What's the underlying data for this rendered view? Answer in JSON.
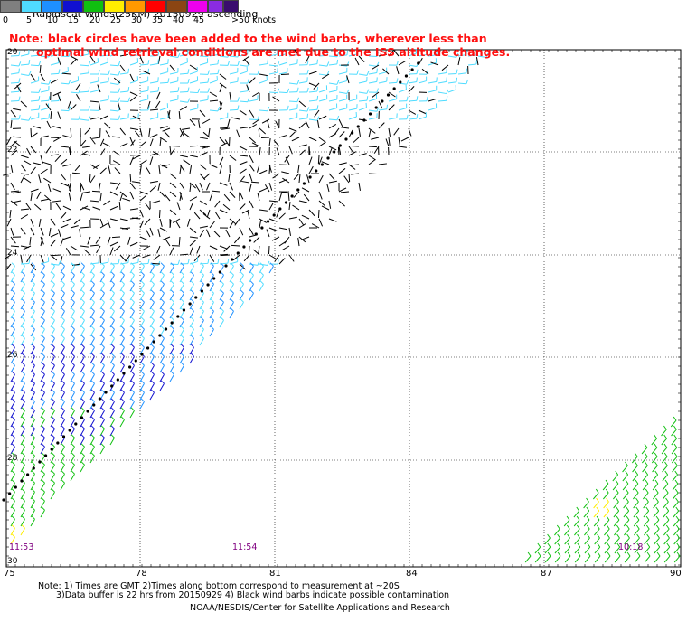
{
  "title": "Rapidscat Winds(25KM) 20150929 ascending",
  "note": {
    "line1": "Note: black circles have been added to the wind barbs, wherever less than",
    "line2": "optimal wind retrieval conditions are met due to the ISS altitude changes."
  },
  "legend": {
    "labels": [
      "0",
      "5",
      "10",
      "15",
      "20",
      "25",
      "30",
      "35",
      "40",
      "45",
      ">50 knots"
    ],
    "colors": [
      "#7f7f7f",
      "#4fdcff",
      "#1e90ff",
      "#1010d0",
      "#10c010",
      "#ffee00",
      "#ff9900",
      "#ff0000",
      "#8b4513",
      "#ee00ee",
      "#8a2be2",
      "#3a0d6e"
    ]
  },
  "map": {
    "lat_labels": [
      "20",
      "22",
      "24",
      "26",
      "28",
      "30"
    ],
    "lon_labels": [
      "75",
      "78",
      "81",
      "84",
      "87",
      "90"
    ],
    "times": [
      "11:53",
      "11:54",
      "10:18"
    ],
    "time_color": "#800080"
  },
  "footnotes": {
    "line1": "Note: 1) Times are GMT 2)Times along bottom correspond to measurement at ~20S",
    "line2": "3)Data buffer is 22 hrs from 20150929 4) Black wind barbs indicate possible contamination",
    "credit": "NOAA/NESDIS/Center for Satellite Applications and Research"
  }
}
